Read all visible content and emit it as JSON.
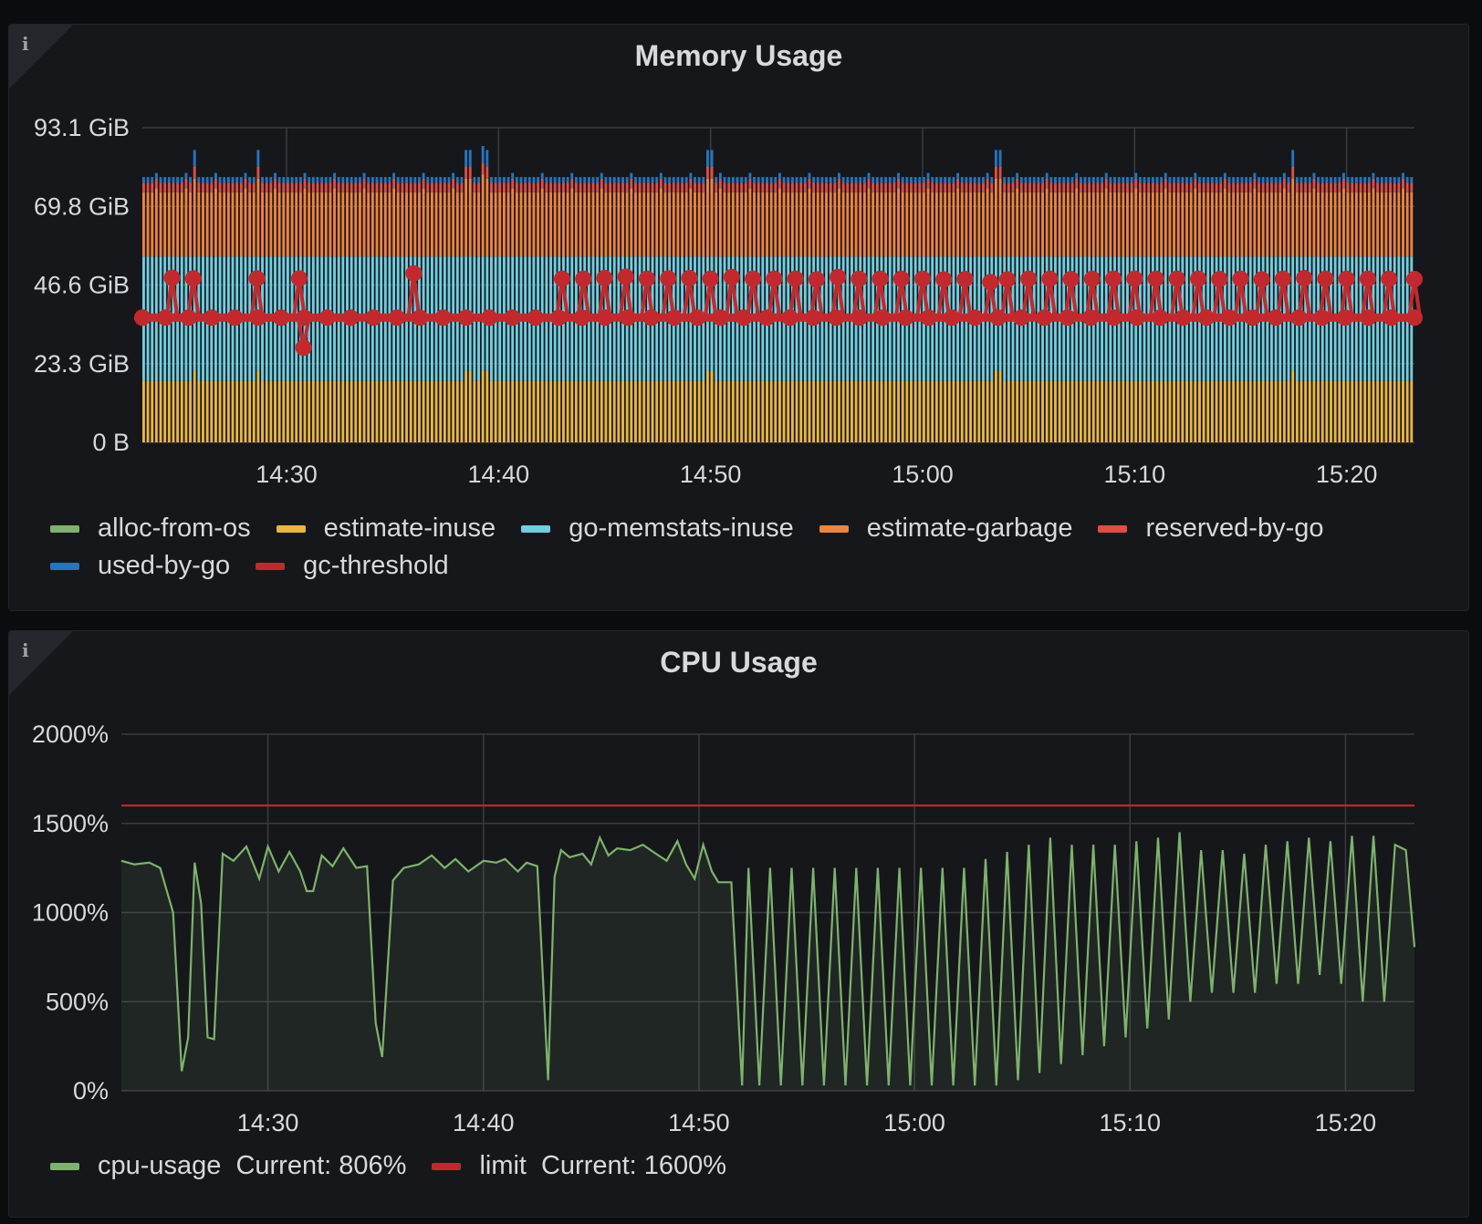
{
  "colors": {
    "background": "#0b0c0e",
    "panel": "#16171b",
    "grid": "#3a3c42",
    "text": "#d8d9da"
  },
  "memory_panel": {
    "info_icon": "info-icon",
    "title": "Memory Usage",
    "legend": [
      {
        "name": "alloc-from-os",
        "color": "#7eb26d"
      },
      {
        "name": "estimate-inuse",
        "color": "#eab839"
      },
      {
        "name": "go-memstats-inuse",
        "color": "#6ed0e0"
      },
      {
        "name": "estimate-garbage",
        "color": "#ef843c"
      },
      {
        "name": "reserved-by-go",
        "color": "#e24d42"
      },
      {
        "name": "used-by-go",
        "color": "#1f78c1"
      },
      {
        "name": "gc-threshold",
        "color": "#c4282d"
      }
    ]
  },
  "cpu_panel": {
    "info_icon": "info-icon",
    "title": "CPU Usage",
    "legend": [
      {
        "name": "cpu-usage",
        "stat": "Current: 806%",
        "color": "#7eb26d"
      },
      {
        "name": "limit",
        "stat": "Current: 1600%",
        "color": "#c4282d"
      }
    ]
  },
  "chart_data": [
    {
      "type": "bar",
      "stacked": true,
      "y_ticks": [
        "0 B",
        "23.3 GiB",
        "46.6 GiB",
        "69.8 GiB",
        "93.1 GiB"
      ],
      "ylim": [
        0,
        93.1
      ],
      "x_ticks": [
        "14:30",
        "14:40",
        "14:50",
        "15:00",
        "15:10",
        "15:20"
      ],
      "x_range_minutes": [
        863.2,
        923.2
      ],
      "grid": true,
      "legend_placement": "bottom",
      "series": [
        {
          "name": "estimate-inuse",
          "typical": 18.2
        },
        {
          "name": "go-memstats-inuse",
          "typical": 37.0
        },
        {
          "name": "estimate-garbage",
          "typical": 74.0
        },
        {
          "name": "reserved-by-go",
          "typical": 76.8
        },
        {
          "name": "used-by-go",
          "typical": 78.5
        },
        {
          "name": "gc-threshold",
          "low": 36.9,
          "high": 49.0
        }
      ],
      "spike_minutes": [
        865.7,
        868.7,
        878.6,
        879.4,
        890.0,
        903.6,
        917.5
      ],
      "gc_points": [
        [
          863.2,
          36.9
        ],
        [
          864.6,
          48.7
        ],
        [
          865.6,
          48.5
        ],
        [
          868.6,
          48.5
        ],
        [
          870.6,
          48.5
        ],
        [
          870.8,
          28.0
        ],
        [
          876.0,
          50.0
        ],
        [
          883.0,
          48.4
        ],
        [
          884.0,
          48.4
        ],
        [
          885.0,
          48.6
        ],
        [
          886.0,
          49.0
        ],
        [
          887.0,
          48.4
        ],
        [
          888.0,
          48.5
        ],
        [
          889.0,
          48.6
        ],
        [
          890.0,
          48.4
        ],
        [
          891.0,
          48.9
        ],
        [
          892.0,
          48.4
        ],
        [
          893.0,
          48.4
        ],
        [
          894.0,
          48.4
        ],
        [
          895.0,
          48.2
        ],
        [
          896.0,
          48.9
        ],
        [
          897.0,
          48.4
        ],
        [
          898.0,
          48.4
        ],
        [
          899.0,
          48.4
        ],
        [
          900.0,
          48.4
        ],
        [
          901.0,
          48.2
        ],
        [
          902.0,
          48.3
        ],
        [
          903.2,
          47.4
        ],
        [
          904.0,
          48.2
        ],
        [
          905.0,
          48.4
        ],
        [
          906.0,
          48.4
        ],
        [
          907.0,
          48.3
        ],
        [
          908.0,
          48.4
        ],
        [
          909.0,
          48.4
        ],
        [
          910.0,
          48.4
        ],
        [
          911.0,
          48.4
        ],
        [
          912.0,
          48.4
        ],
        [
          913.0,
          48.4
        ],
        [
          914.0,
          48.3
        ],
        [
          915.0,
          48.4
        ],
        [
          916.0,
          48.2
        ],
        [
          917.0,
          48.4
        ],
        [
          918.0,
          48.6
        ],
        [
          919.0,
          48.4
        ],
        [
          920.0,
          48.4
        ],
        [
          921.0,
          48.4
        ],
        [
          922.0,
          48.4
        ],
        [
          923.2,
          48.3
        ]
      ]
    },
    {
      "type": "area",
      "y_ticks": [
        "0%",
        "500%",
        "1000%",
        "1500%",
        "2000%"
      ],
      "ylim": [
        0,
        2000
      ],
      "x_ticks": [
        "14:30",
        "14:40",
        "14:50",
        "15:00",
        "15:10",
        "15:20"
      ],
      "x_range_minutes": [
        863.2,
        923.2
      ],
      "grid": true,
      "legend_placement": "bottom",
      "series": [
        {
          "name": "cpu-usage",
          "points": [
            [
              863.2,
              1290
            ],
            [
              863.8,
              1270
            ],
            [
              864.5,
              1280
            ],
            [
              865.0,
              1250
            ],
            [
              865.6,
              1000
            ],
            [
              866.0,
              110
            ],
            [
              866.3,
              300
            ],
            [
              866.6,
              1280
            ],
            [
              866.9,
              1050
            ],
            [
              867.2,
              300
            ],
            [
              867.5,
              290
            ],
            [
              867.9,
              1330
            ],
            [
              868.4,
              1290
            ],
            [
              869.0,
              1370
            ],
            [
              869.6,
              1190
            ],
            [
              870.0,
              1370
            ],
            [
              870.5,
              1230
            ],
            [
              871.0,
              1340
            ],
            [
              871.5,
              1230
            ],
            [
              871.8,
              1120
            ],
            [
              872.1,
              1120
            ],
            [
              872.5,
              1320
            ],
            [
              873.0,
              1260
            ],
            [
              873.5,
              1360
            ],
            [
              874.1,
              1250
            ],
            [
              874.6,
              1260
            ],
            [
              875.0,
              380
            ],
            [
              875.3,
              190
            ],
            [
              875.8,
              1180
            ],
            [
              876.3,
              1250
            ],
            [
              877.0,
              1270
            ],
            [
              877.6,
              1320
            ],
            [
              878.2,
              1250
            ],
            [
              878.7,
              1300
            ],
            [
              879.3,
              1230
            ],
            [
              880.0,
              1290
            ],
            [
              880.6,
              1280
            ],
            [
              881.0,
              1300
            ],
            [
              881.6,
              1230
            ],
            [
              882.0,
              1280
            ],
            [
              882.5,
              1260
            ],
            [
              883.0,
              60
            ],
            [
              883.3,
              1200
            ],
            [
              883.6,
              1350
            ],
            [
              884.0,
              1310
            ],
            [
              884.6,
              1330
            ],
            [
              885.0,
              1270
            ],
            [
              885.4,
              1420
            ],
            [
              885.8,
              1320
            ],
            [
              886.2,
              1360
            ],
            [
              886.8,
              1350
            ],
            [
              887.4,
              1380
            ],
            [
              888.0,
              1330
            ],
            [
              888.5,
              1290
            ],
            [
              889.0,
              1400
            ],
            [
              889.4,
              1270
            ],
            [
              889.8,
              1190
            ],
            [
              890.2,
              1380
            ],
            [
              890.6,
              1230
            ],
            [
              890.9,
              1170
            ],
            [
              891.5,
              1170
            ],
            [
              892.0,
              30
            ],
            [
              892.3,
              1250
            ],
            [
              892.8,
              30
            ],
            [
              893.3,
              1250
            ],
            [
              893.8,
              30
            ],
            [
              894.3,
              1250
            ],
            [
              894.8,
              30
            ],
            [
              895.3,
              1250
            ],
            [
              895.8,
              30
            ],
            [
              896.3,
              1250
            ],
            [
              896.8,
              30
            ],
            [
              897.3,
              1250
            ],
            [
              897.8,
              30
            ],
            [
              898.3,
              1250
            ],
            [
              898.8,
              30
            ],
            [
              899.3,
              1250
            ],
            [
              899.8,
              30
            ],
            [
              900.3,
              1250
            ],
            [
              900.8,
              30
            ],
            [
              901.3,
              1250
            ],
            [
              901.8,
              30
            ],
            [
              902.3,
              1250
            ],
            [
              902.8,
              30
            ],
            [
              903.3,
              1300
            ],
            [
              903.8,
              30
            ],
            [
              904.3,
              1340
            ],
            [
              904.8,
              60
            ],
            [
              905.3,
              1380
            ],
            [
              905.8,
              100
            ],
            [
              906.3,
              1420
            ],
            [
              906.8,
              150
            ],
            [
              907.3,
              1380
            ],
            [
              907.8,
              200
            ],
            [
              908.3,
              1380
            ],
            [
              908.8,
              250
            ],
            [
              909.3,
              1380
            ],
            [
              909.8,
              300
            ],
            [
              910.3,
              1400
            ],
            [
              910.8,
              350
            ],
            [
              911.3,
              1420
            ],
            [
              911.8,
              400
            ],
            [
              912.3,
              1450
            ],
            [
              912.8,
              500
            ],
            [
              913.3,
              1350
            ],
            [
              913.8,
              550
            ],
            [
              914.3,
              1350
            ],
            [
              914.8,
              550
            ],
            [
              915.3,
              1330
            ],
            [
              915.8,
              550
            ],
            [
              916.3,
              1380
            ],
            [
              916.8,
              600
            ],
            [
              917.3,
              1400
            ],
            [
              917.8,
              600
            ],
            [
              918.3,
              1420
            ],
            [
              918.8,
              650
            ],
            [
              919.3,
              1400
            ],
            [
              919.8,
              600
            ],
            [
              920.3,
              1430
            ],
            [
              920.8,
              500
            ],
            [
              921.3,
              1430
            ],
            [
              921.8,
              500
            ],
            [
              922.3,
              1380
            ],
            [
              922.8,
              1350
            ],
            [
              923.2,
              806
            ]
          ]
        },
        {
          "name": "limit",
          "points": [
            [
              863.2,
              1600
            ],
            [
              923.2,
              1600
            ]
          ]
        }
      ]
    }
  ]
}
